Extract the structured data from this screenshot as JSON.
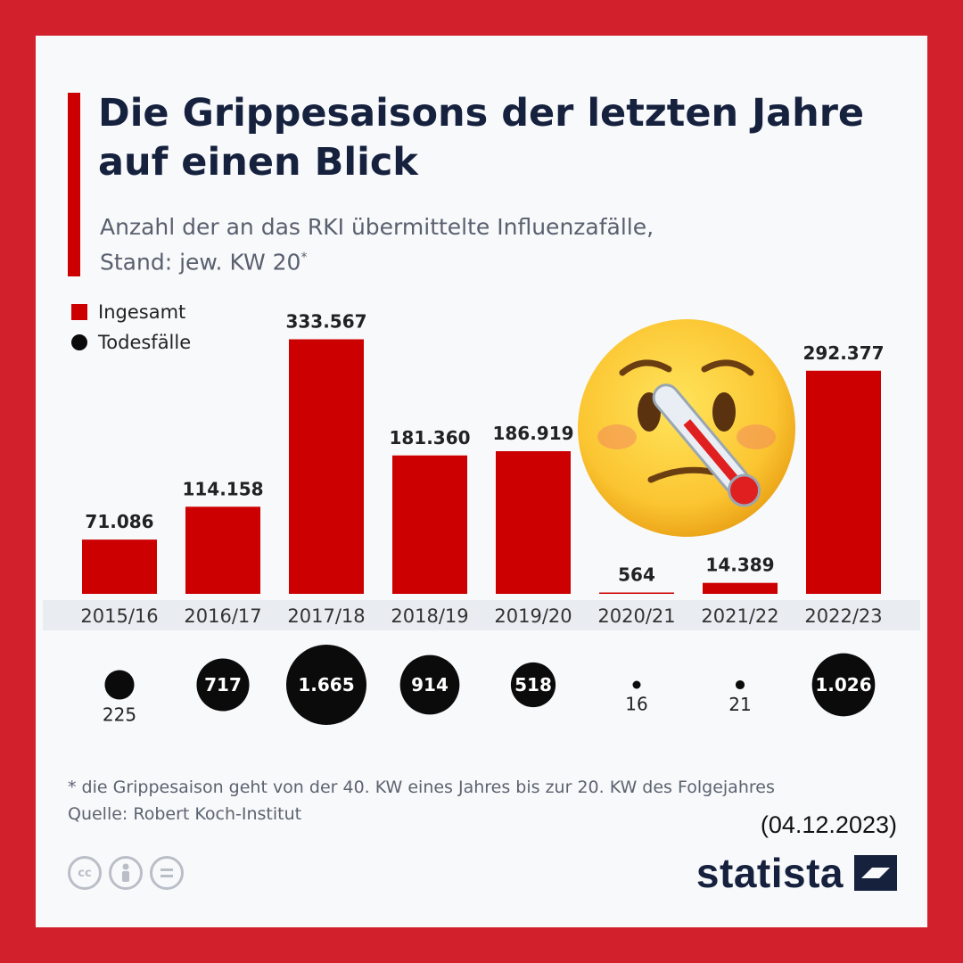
{
  "title": "Die Grippesaisons der letzten Jahre auf einen Blick",
  "subtitle_line1": "Anzahl der an das RKI übermittelte Influenzafälle,",
  "subtitle_line2": "Stand: jew. KW 20",
  "subtitle_marker": "*",
  "legend": [
    {
      "label": "Ingesamt",
      "shape": "square",
      "color": "#cc0000"
    },
    {
      "label": "Todesfälle",
      "shape": "circle",
      "color": "#0b0b0b"
    }
  ],
  "chart_data": {
    "type": "bar",
    "categories": [
      "2015/16",
      "2016/17",
      "2017/18",
      "2018/19",
      "2019/20",
      "2020/21",
      "2021/22",
      "2022/23"
    ],
    "series": [
      {
        "name": "Ingesamt",
        "values": [
          71086,
          114158,
          333567,
          181360,
          186919,
          564,
          14389,
          292377
        ],
        "labels": [
          "71.086",
          "114.158",
          "333.567",
          "181.360",
          "186.919",
          "564",
          "14.389",
          "292.377"
        ],
        "color": "#cc0000"
      },
      {
        "name": "Todesfälle",
        "values": [
          225,
          717,
          1665,
          914,
          518,
          16,
          21,
          1026
        ],
        "labels": [
          "225",
          "717",
          "1.665",
          "914",
          "518",
          "16",
          "21",
          "1.026"
        ],
        "color": "#0b0b0b",
        "display": "bubble"
      }
    ],
    "ylim": [
      0,
      340000
    ],
    "grid": false,
    "legend_position": "top-left"
  },
  "decoration": {
    "icon": "face-with-thermometer-emoji"
  },
  "footnote": "* die Grippesaison geht von der 40. KW eines Jahres bis zur 20. KW des Folgejahres",
  "source": "Quelle: Robert Koch-Institut",
  "date": "(04.12.2023)",
  "license_icons": [
    {
      "name": "cc-icon",
      "text": "cc"
    },
    {
      "name": "attribution-icon",
      "text": ""
    },
    {
      "name": "no-derivatives-icon",
      "text": ""
    }
  ],
  "brand": "statista",
  "colors": {
    "frame": "#d2202d",
    "background": "#f8f9fb",
    "title": "#16213e",
    "subtitle": "#59606e",
    "bar": "#cc0000",
    "bubble": "#0b0b0b",
    "axis_band": "#e9ecf1"
  }
}
